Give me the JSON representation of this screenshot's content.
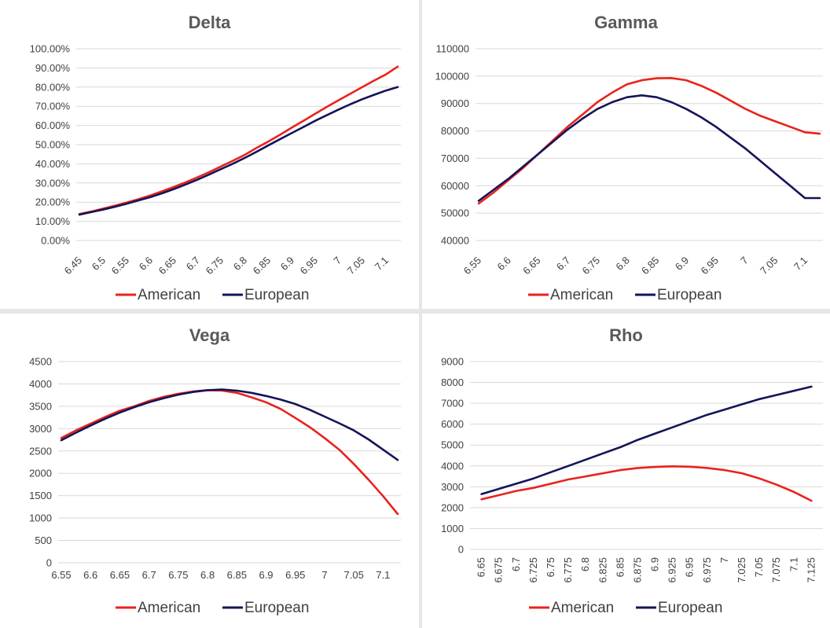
{
  "chart_data": [
    {
      "id": "delta",
      "type": "line",
      "title": "Delta",
      "xlabel": "",
      "ylabel": "",
      "categories": [
        "6.45",
        "6.5",
        "6.55",
        "6.6",
        "6.65",
        "6.7",
        "6.75",
        "6.8",
        "6.85",
        "6.9",
        "6.95",
        "7",
        "7.05",
        "7.1"
      ],
      "x": [
        6.45,
        6.475,
        6.5,
        6.525,
        6.55,
        6.575,
        6.6,
        6.625,
        6.65,
        6.675,
        6.7,
        6.725,
        6.75,
        6.775,
        6.8,
        6.825,
        6.85,
        6.875,
        6.9,
        6.925,
        6.95,
        6.975,
        7.0,
        7.025,
        7.05,
        7.075,
        7.1,
        7.125
      ],
      "ylim": [
        0,
        1
      ],
      "yticks": [
        0,
        0.1,
        0.2,
        0.3,
        0.4,
        0.5,
        0.6,
        0.7,
        0.8,
        0.9,
        1.0
      ],
      "ytick_labels": [
        "0.00%",
        "10.00%",
        "20.00%",
        "30.00%",
        "40.00%",
        "50.00%",
        "60.00%",
        "70.00%",
        "80.00%",
        "90.00%",
        "100.00%"
      ],
      "grid": true,
      "xtick_rotation": "diagonal",
      "series": [
        {
          "name": "American",
          "color": "#e8231c",
          "values": [
            0.138,
            0.151,
            0.166,
            0.181,
            0.198,
            0.215,
            0.235,
            0.256,
            0.279,
            0.303,
            0.329,
            0.356,
            0.386,
            0.415,
            0.446,
            0.482,
            0.515,
            0.551,
            0.588,
            0.624,
            0.661,
            0.697,
            0.732,
            0.766,
            0.8,
            0.834,
            0.866,
            0.907
          ]
        },
        {
          "name": "European",
          "color": "#141458",
          "values": [
            0.135,
            0.148,
            0.161,
            0.176,
            0.192,
            0.209,
            0.226,
            0.246,
            0.268,
            0.292,
            0.317,
            0.344,
            0.372,
            0.4,
            0.43,
            0.462,
            0.495,
            0.528,
            0.56,
            0.592,
            0.624,
            0.654,
            0.683,
            0.711,
            0.737,
            0.76,
            0.782,
            0.8
          ]
        }
      ]
    },
    {
      "id": "gamma",
      "type": "line",
      "title": "Gamma",
      "xlabel": "",
      "ylabel": "",
      "categories": [
        "6.55",
        "6.6",
        "6.65",
        "6.7",
        "6.75",
        "6.8",
        "6.85",
        "6.9",
        "6.95",
        "7",
        "7.05",
        "7.1"
      ],
      "x": [
        6.55,
        6.575,
        6.6,
        6.625,
        6.65,
        6.675,
        6.7,
        6.725,
        6.75,
        6.775,
        6.8,
        6.825,
        6.85,
        6.875,
        6.9,
        6.925,
        6.95,
        6.975,
        7.0,
        7.025,
        7.05,
        7.075,
        7.1,
        7.125
      ],
      "ylim": [
        40000,
        110000
      ],
      "yticks": [
        40000,
        50000,
        60000,
        70000,
        80000,
        90000,
        100000,
        110000
      ],
      "ytick_labels": [
        "40000",
        "50000",
        "60000",
        "70000",
        "80000",
        "90000",
        "100000",
        "110000"
      ],
      "grid": true,
      "xtick_rotation": "diagonal",
      "series": [
        {
          "name": "American",
          "color": "#e8231c",
          "values": [
            53500,
            57500,
            62000,
            66500,
            71500,
            76500,
            81500,
            86000,
            90500,
            94000,
            97000,
            98500,
            99200,
            99300,
            98500,
            96500,
            94000,
            91000,
            88000,
            85500,
            83500,
            81500,
            79500,
            79000
          ]
        },
        {
          "name": "European",
          "color": "#141458",
          "values": [
            54500,
            58500,
            62500,
            67000,
            71500,
            76000,
            80500,
            84500,
            88000,
            90500,
            92300,
            93000,
            92300,
            90500,
            88000,
            85000,
            81500,
            77500,
            73500,
            69000,
            64500,
            60000,
            55500,
            55500
          ]
        }
      ]
    },
    {
      "id": "vega",
      "type": "line",
      "title": "Vega",
      "xlabel": "",
      "ylabel": "",
      "categories": [
        "6.55",
        "6.6",
        "6.65",
        "6.7",
        "6.75",
        "6.8",
        "6.85",
        "6.9",
        "6.95",
        "7",
        "7.05",
        "7.1"
      ],
      "x": [
        6.55,
        6.575,
        6.6,
        6.625,
        6.65,
        6.675,
        6.7,
        6.725,
        6.75,
        6.775,
        6.8,
        6.825,
        6.85,
        6.875,
        6.9,
        6.925,
        6.95,
        6.975,
        7.0,
        7.025,
        7.05,
        7.075,
        7.1,
        7.125
      ],
      "ylim": [
        0,
        4500
      ],
      "yticks": [
        0,
        500,
        1000,
        1500,
        2000,
        2500,
        3000,
        3500,
        4000,
        4500
      ],
      "ytick_labels": [
        "0",
        "500",
        "1000",
        "1500",
        "2000",
        "2500",
        "3000",
        "3500",
        "4000",
        "4500"
      ],
      "grid": true,
      "xtick_rotation": "none",
      "series": [
        {
          "name": "American",
          "color": "#e8231c",
          "values": [
            2790,
            2960,
            3110,
            3260,
            3400,
            3500,
            3620,
            3710,
            3780,
            3830,
            3860,
            3850,
            3800,
            3700,
            3590,
            3440,
            3240,
            3030,
            2790,
            2530,
            2210,
            1860,
            1490,
            1090
          ]
        },
        {
          "name": "European",
          "color": "#141458",
          "values": [
            2740,
            2910,
            3070,
            3220,
            3360,
            3480,
            3590,
            3680,
            3760,
            3820,
            3860,
            3875,
            3850,
            3800,
            3730,
            3650,
            3550,
            3420,
            3270,
            3120,
            2960,
            2760,
            2530,
            2300
          ]
        }
      ]
    },
    {
      "id": "rho",
      "type": "line",
      "title": "Rho",
      "xlabel": "",
      "ylabel": "",
      "categories": [
        "6.65",
        "6.675",
        "6.7",
        "6.725",
        "6.75",
        "6.775",
        "6.8",
        "6.825",
        "6.85",
        "6.875",
        "6.9",
        "6.925",
        "6.95",
        "6.975",
        "7",
        "7.025",
        "7.05",
        "7.075",
        "7.1",
        "7.125"
      ],
      "x": [
        6.65,
        6.675,
        6.7,
        6.725,
        6.75,
        6.775,
        6.8,
        6.825,
        6.85,
        6.875,
        6.9,
        6.925,
        6.95,
        6.975,
        7.0,
        7.025,
        7.05,
        7.075,
        7.1,
        7.125
      ],
      "ylim": [
        0,
        9000
      ],
      "yticks": [
        0,
        1000,
        2000,
        3000,
        4000,
        5000,
        6000,
        7000,
        8000,
        9000
      ],
      "ytick_labels": [
        "0",
        "1000",
        "2000",
        "3000",
        "4000",
        "5000",
        "6000",
        "7000",
        "8000",
        "9000"
      ],
      "grid": true,
      "xtick_rotation": "vertical",
      "series": [
        {
          "name": "American",
          "color": "#e8231c",
          "values": [
            2400,
            2600,
            2800,
            2950,
            3150,
            3350,
            3500,
            3650,
            3800,
            3900,
            3950,
            3980,
            3960,
            3900,
            3800,
            3650,
            3400,
            3100,
            2750,
            2330
          ]
        },
        {
          "name": "European",
          "color": "#141458",
          "values": [
            2650,
            2900,
            3150,
            3400,
            3700,
            4000,
            4300,
            4600,
            4900,
            5250,
            5550,
            5850,
            6150,
            6450,
            6700,
            6950,
            7200,
            7400,
            7600,
            7800
          ]
        }
      ]
    }
  ],
  "legend": {
    "entries": [
      "American",
      "European"
    ],
    "placement": "bottom-center"
  }
}
